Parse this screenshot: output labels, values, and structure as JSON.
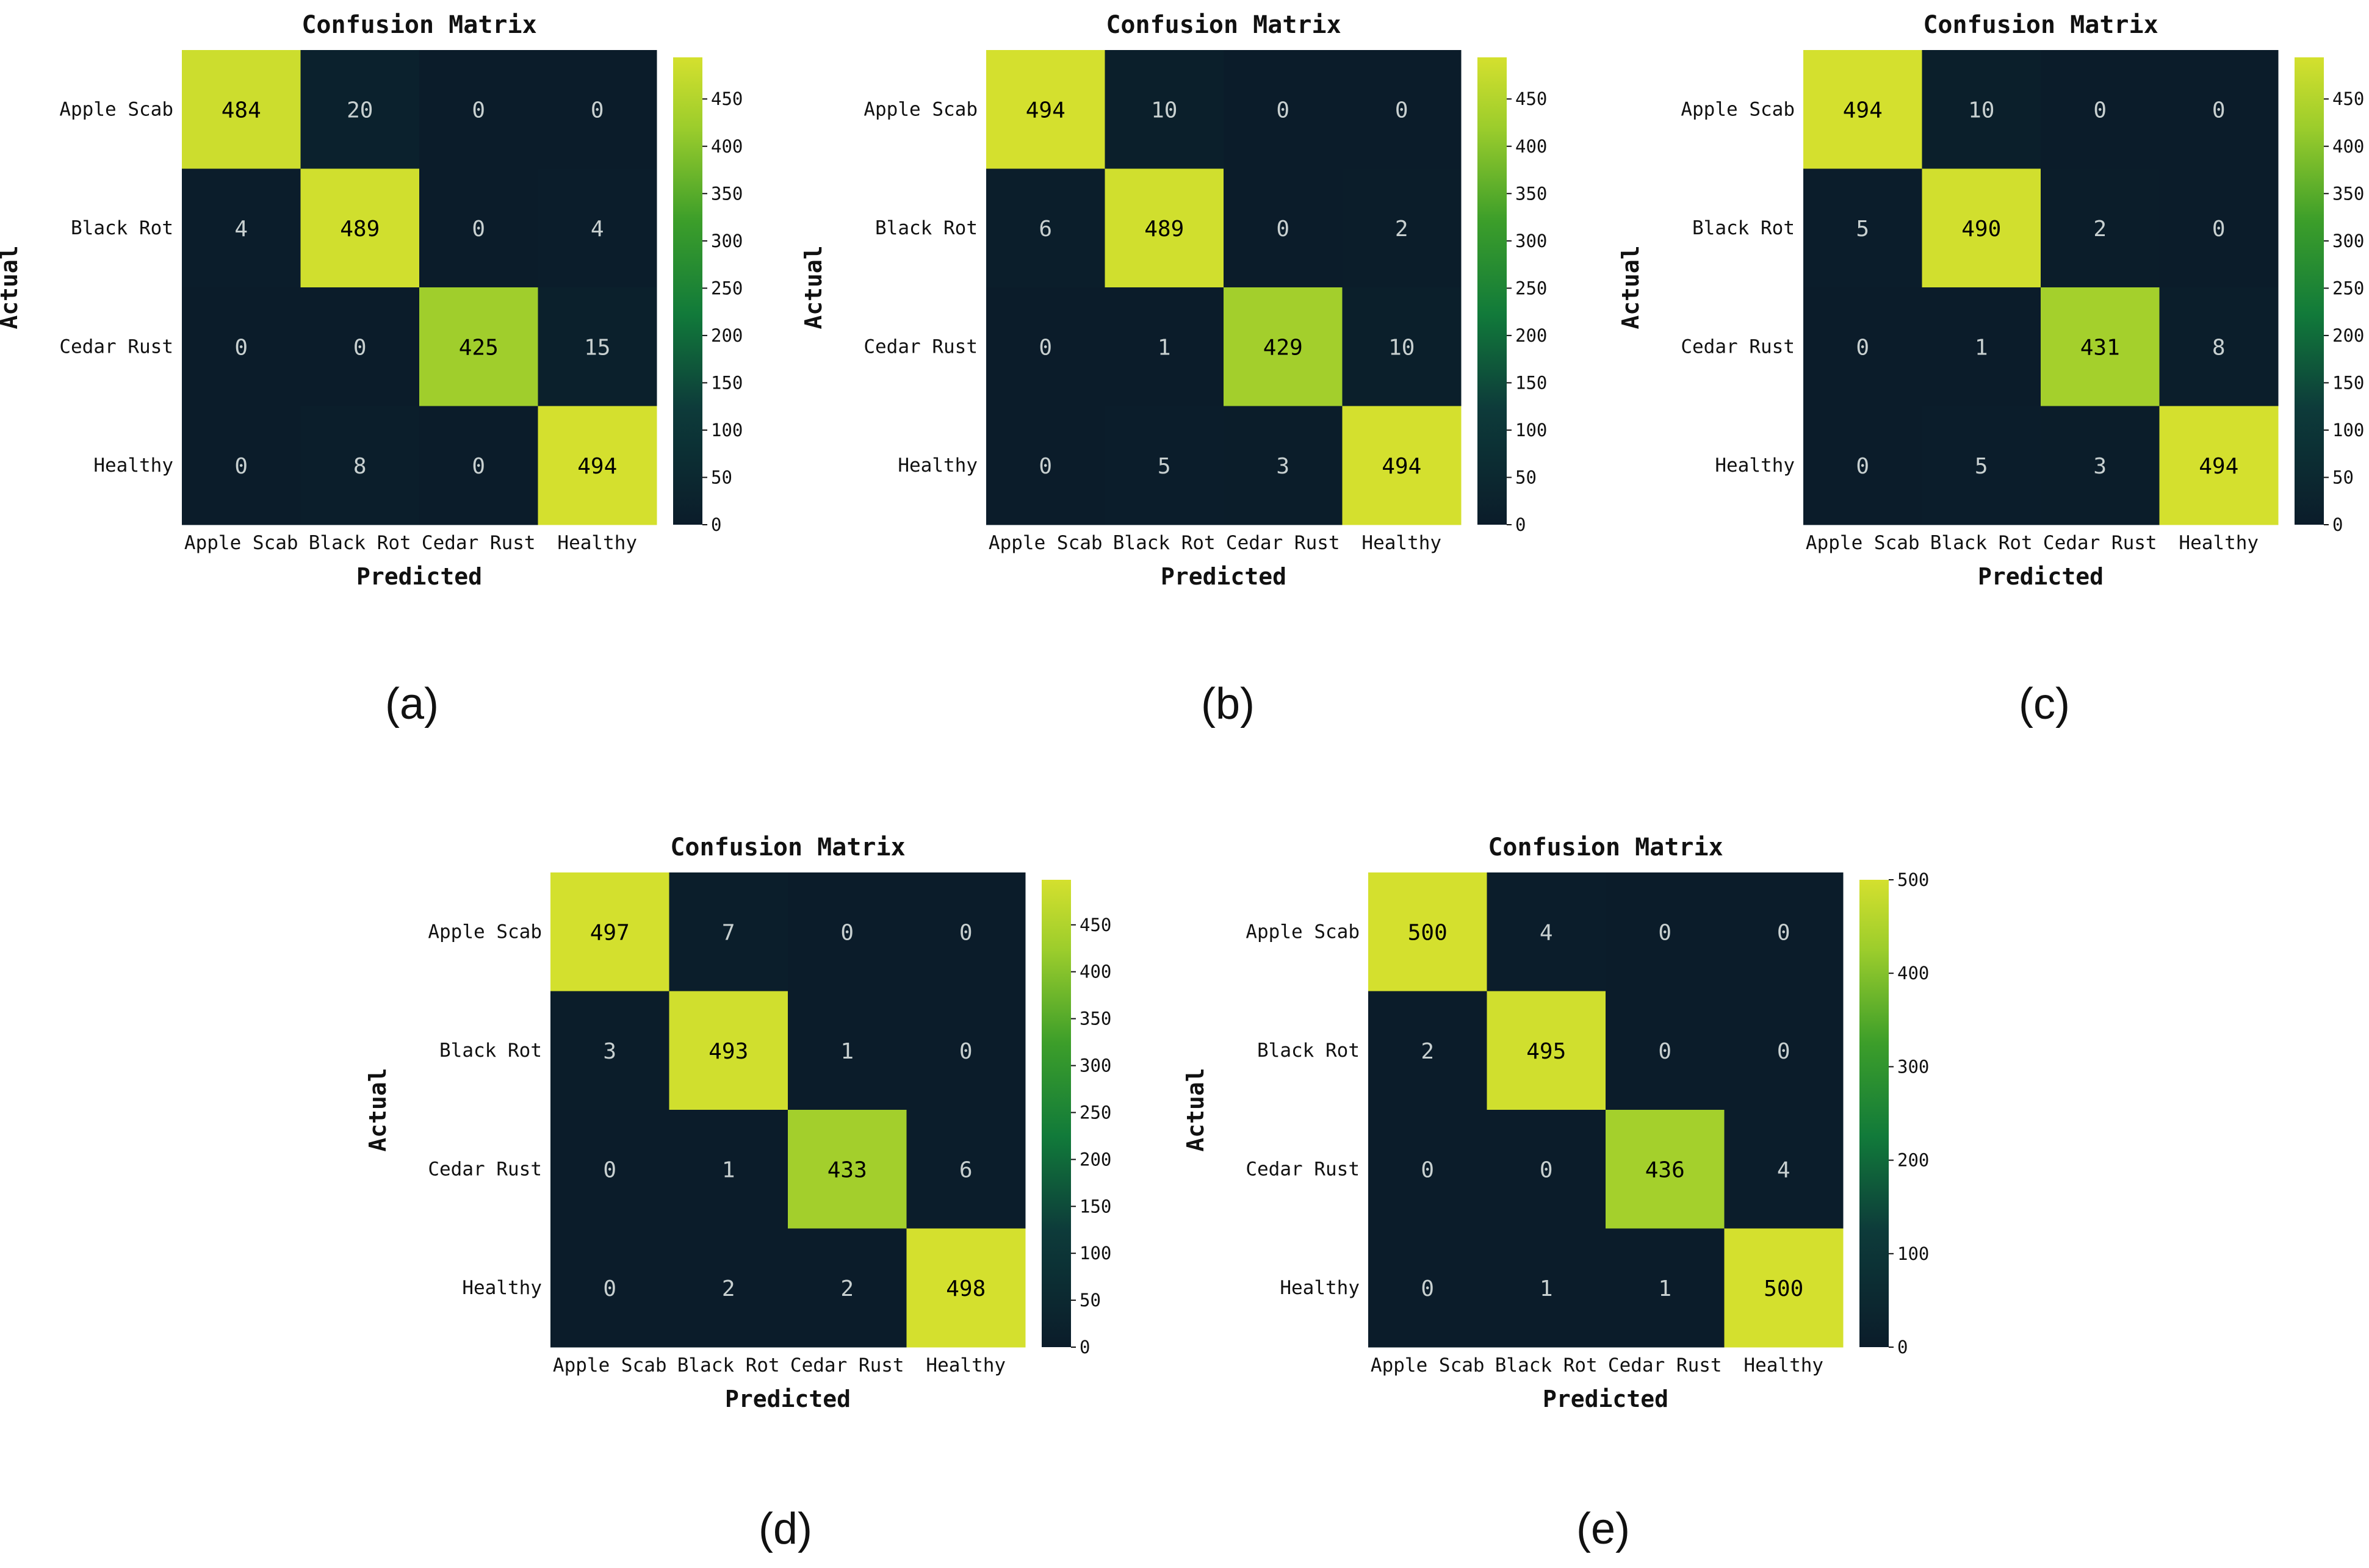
{
  "figure": {
    "panel_labels": [
      "(a)",
      "(b)",
      "(c)",
      "(d)",
      "(e)"
    ]
  },
  "colors": {
    "cmap_low": "#0b1c2a",
    "cmap_mid": "#1a9a3c",
    "cmap_high": "#d4e02e",
    "text_dark": "#000000",
    "text_light": "#c8d0d0",
    "background": "#ffffff"
  },
  "chart_data": [
    {
      "type": "heatmap",
      "panel": "(a)",
      "title": "Confusion Matrix",
      "xlabel": "Predicted",
      "ylabel": "Actual",
      "x_categories": [
        "Apple Scab",
        "Black Rot",
        "Cedar Rust",
        "Healthy"
      ],
      "y_categories": [
        "Apple Scab",
        "Black Rot",
        "Cedar Rust",
        "Healthy"
      ],
      "matrix": [
        [
          484,
          20,
          0,
          0
        ],
        [
          4,
          489,
          0,
          4
        ],
        [
          0,
          0,
          425,
          15
        ],
        [
          0,
          8,
          0,
          494
        ]
      ],
      "colorbar": {
        "min": 0,
        "max": 494,
        "ticks": [
          0,
          50,
          100,
          150,
          200,
          250,
          300,
          350,
          400,
          450
        ]
      }
    },
    {
      "type": "heatmap",
      "panel": "(b)",
      "title": "Confusion Matrix",
      "xlabel": "Predicted",
      "ylabel": "Actual",
      "x_categories": [
        "Apple Scab",
        "Black Rot",
        "Cedar Rust",
        "Healthy"
      ],
      "y_categories": [
        "Apple Scab",
        "Black Rot",
        "Cedar Rust",
        "Healthy"
      ],
      "matrix": [
        [
          494,
          10,
          0,
          0
        ],
        [
          6,
          489,
          0,
          2
        ],
        [
          0,
          1,
          429,
          10
        ],
        [
          0,
          5,
          3,
          494
        ]
      ],
      "colorbar": {
        "min": 0,
        "max": 494,
        "ticks": [
          0,
          50,
          100,
          150,
          200,
          250,
          300,
          350,
          400,
          450
        ]
      }
    },
    {
      "type": "heatmap",
      "panel": "(c)",
      "title": "Confusion Matrix",
      "xlabel": "Predicted",
      "ylabel": "Actual",
      "x_categories": [
        "Apple Scab",
        "Black Rot",
        "Cedar Rust",
        "Healthy"
      ],
      "y_categories": [
        "Apple Scab",
        "Black Rot",
        "Cedar Rust",
        "Healthy"
      ],
      "matrix": [
        [
          494,
          10,
          0,
          0
        ],
        [
          5,
          490,
          2,
          0
        ],
        [
          0,
          1,
          431,
          8
        ],
        [
          0,
          5,
          3,
          494
        ]
      ],
      "colorbar": {
        "min": 0,
        "max": 494,
        "ticks": [
          0,
          50,
          100,
          150,
          200,
          250,
          300,
          350,
          400,
          450
        ]
      }
    },
    {
      "type": "heatmap",
      "panel": "(d)",
      "title": "Confusion Matrix",
      "xlabel": "Predicted",
      "ylabel": "Actual",
      "x_categories": [
        "Apple Scab",
        "Black Rot",
        "Cedar Rust",
        "Healthy"
      ],
      "y_categories": [
        "Apple Scab",
        "Black Rot",
        "Cedar Rust",
        "Healthy"
      ],
      "matrix": [
        [
          497,
          7,
          0,
          0
        ],
        [
          3,
          493,
          1,
          0
        ],
        [
          0,
          1,
          433,
          6
        ],
        [
          0,
          2,
          2,
          498
        ]
      ],
      "colorbar": {
        "min": 0,
        "max": 498,
        "ticks": [
          0,
          50,
          100,
          150,
          200,
          250,
          300,
          350,
          400,
          450
        ]
      }
    },
    {
      "type": "heatmap",
      "panel": "(e)",
      "title": "Confusion Matrix",
      "xlabel": "Predicted",
      "ylabel": "Actual",
      "x_categories": [
        "Apple Scab",
        "Black Rot",
        "Cedar Rust",
        "Healthy"
      ],
      "y_categories": [
        "Apple Scab",
        "Black Rot",
        "Cedar Rust",
        "Healthy"
      ],
      "matrix": [
        [
          500,
          4,
          0,
          0
        ],
        [
          2,
          495,
          0,
          0
        ],
        [
          0,
          0,
          436,
          4
        ],
        [
          0,
          1,
          1,
          500
        ]
      ],
      "colorbar": {
        "min": 0,
        "max": 500,
        "ticks": [
          0,
          100,
          200,
          300,
          400,
          500
        ]
      }
    }
  ]
}
